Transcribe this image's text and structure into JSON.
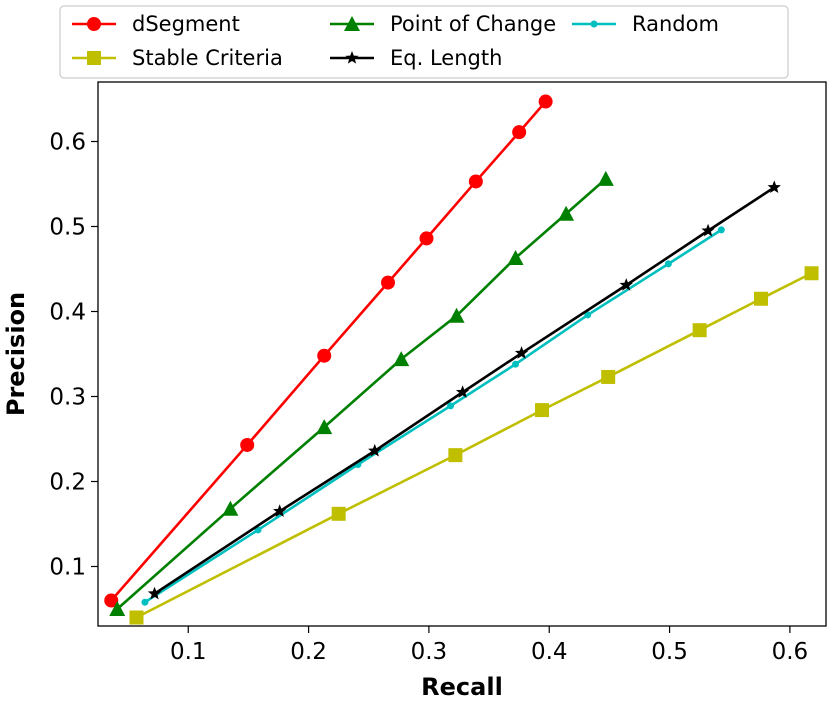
{
  "chart_data": {
    "type": "line",
    "title": "",
    "xlabel": "Recall",
    "ylabel": "Precision",
    "xlim": [
      0.025,
      0.63
    ],
    "ylim": [
      0.03,
      0.67
    ],
    "xticks": [
      0.1,
      0.2,
      0.3,
      0.4,
      0.5,
      0.6
    ],
    "yticks": [
      0.1,
      0.2,
      0.3,
      0.4,
      0.5,
      0.6
    ],
    "xtick_labels": [
      "0.1",
      "0.2",
      "0.3",
      "0.4",
      "0.5",
      "0.6"
    ],
    "ytick_labels": [
      "0.1",
      "0.2",
      "0.3",
      "0.4",
      "0.5",
      "0.6"
    ],
    "grid": false,
    "legend_position": "top",
    "series": [
      {
        "name": "dSegment",
        "color": "#ff0000",
        "marker": "circle",
        "x": [
          0.036,
          0.149,
          0.213,
          0.266,
          0.298,
          0.339,
          0.375,
          0.397
        ],
        "y": [
          0.06,
          0.243,
          0.348,
          0.434,
          0.486,
          0.553,
          0.611,
          0.647
        ]
      },
      {
        "name": "Stable Criteria",
        "color": "#bfbf00",
        "marker": "square",
        "x": [
          0.057,
          0.225,
          0.322,
          0.394,
          0.449,
          0.525,
          0.576,
          0.618
        ],
        "y": [
          0.04,
          0.162,
          0.231,
          0.284,
          0.323,
          0.378,
          0.415,
          0.445
        ]
      },
      {
        "name": "Point of Change",
        "color": "#008000",
        "marker": "triangle",
        "x": [
          0.041,
          0.135,
          0.213,
          0.277,
          0.323,
          0.372,
          0.414,
          0.447
        ],
        "y": [
          0.05,
          0.168,
          0.264,
          0.344,
          0.395,
          0.463,
          0.515,
          0.556
        ]
      },
      {
        "name": "Eq. Length",
        "color": "#000000",
        "marker": "star",
        "x": [
          0.072,
          0.176,
          0.255,
          0.328,
          0.377,
          0.464,
          0.532,
          0.587
        ],
        "y": [
          0.068,
          0.165,
          0.236,
          0.305,
          0.351,
          0.431,
          0.495,
          0.546
        ]
      },
      {
        "name": "Random",
        "color": "#00bfbf",
        "marker": "dot",
        "x": [
          0.064,
          0.158,
          0.241,
          0.318,
          0.372,
          0.432,
          0.499,
          0.543
        ],
        "y": [
          0.058,
          0.143,
          0.22,
          0.289,
          0.338,
          0.396,
          0.456,
          0.496
        ]
      }
    ]
  }
}
